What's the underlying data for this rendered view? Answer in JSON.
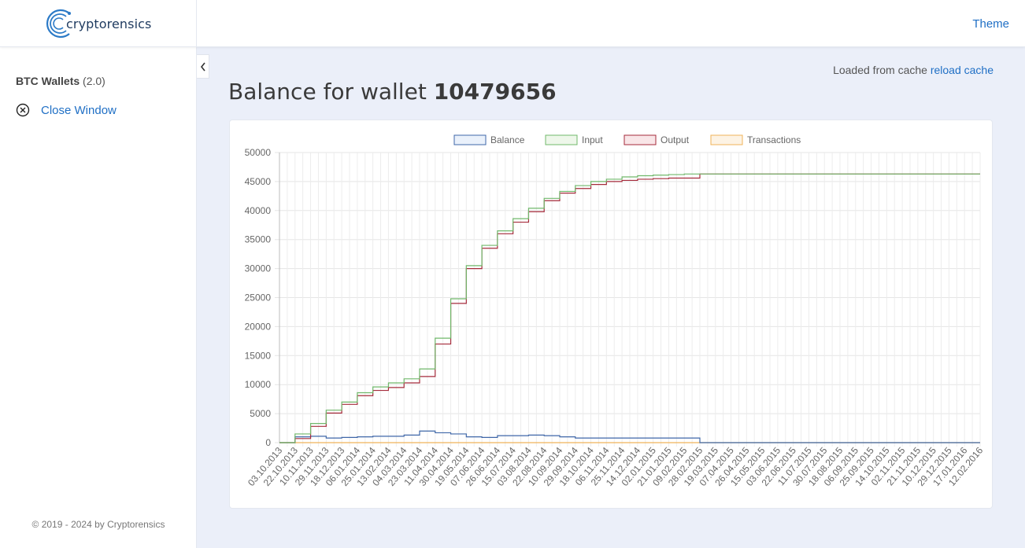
{
  "header": {
    "logo_text": "cryptorensics",
    "theme_label": "Theme"
  },
  "sidebar": {
    "section_title": "BTC Wallets",
    "section_version": "(2.0)",
    "close_label": "Close Window",
    "footer": "© 2019 - 2024 by Cryptorensics"
  },
  "main": {
    "cache_text": "Loaded from cache",
    "reload_label": "reload cache",
    "title_prefix": "Balance for wallet",
    "wallet_id": "10479656"
  },
  "colors": {
    "accent": "#1f6fc5",
    "balance": "#3f67a8",
    "input": "#70b86b",
    "output": "#a52b3b",
    "transactions": "#f0b35a"
  },
  "icons": {
    "close": "circle-x-icon",
    "collapse": "chevron-left-icon"
  },
  "chart_data": {
    "type": "line",
    "ylim": [
      0,
      50000
    ],
    "yticks": [
      0,
      5000,
      10000,
      15000,
      20000,
      25000,
      30000,
      35000,
      40000,
      45000,
      50000
    ],
    "legend_position": "top",
    "grid": true,
    "categories": [
      "03.10.2013",
      "22.10.2013",
      "10.11.2013",
      "29.11.2013",
      "18.12.2013",
      "06.01.2014",
      "25.01.2014",
      "13.02.2014",
      "04.03.2014",
      "23.03.2014",
      "11.04.2014",
      "30.04.2014",
      "19.05.2014",
      "07.06.2014",
      "26.06.2014",
      "15.07.2014",
      "03.08.2014",
      "22.08.2014",
      "10.09.2014",
      "29.09.2014",
      "18.10.2014",
      "06.11.2014",
      "25.11.2014",
      "14.12.2014",
      "02.01.2015",
      "21.01.2015",
      "09.02.2015",
      "28.02.2015",
      "19.03.2015",
      "07.04.2015",
      "26.04.2015",
      "15.05.2015",
      "03.06.2015",
      "22.06.2015",
      "11.07.2015",
      "30.07.2015",
      "18.08.2015",
      "06.09.2015",
      "25.09.2015",
      "14.10.2015",
      "02.11.2015",
      "21.11.2015",
      "10.12.2015",
      "29.12.2015",
      "17.01.2016",
      "12.02.2016"
    ],
    "series": [
      {
        "name": "Balance",
        "values": [
          0,
          1000,
          1100,
          800,
          900,
          1000,
          1100,
          1100,
          1300,
          2000,
          1700,
          1500,
          1000,
          900,
          1200,
          1200,
          1300,
          1200,
          1000,
          800,
          800,
          800,
          800,
          800,
          800,
          800,
          800,
          0,
          0,
          0,
          0,
          0,
          0,
          0,
          0,
          0,
          0,
          0,
          0,
          0,
          0,
          0,
          0,
          0,
          0,
          0
        ]
      },
      {
        "name": "Input",
        "values": [
          0,
          1500,
          3300,
          5600,
          7000,
          8600,
          9600,
          10300,
          11000,
          12700,
          18000,
          24800,
          30500,
          34000,
          36500,
          38600,
          40400,
          42100,
          43300,
          44300,
          45000,
          45400,
          45800,
          46000,
          46100,
          46200,
          46300,
          46300,
          46300,
          46300,
          46300,
          46300,
          46300,
          46300,
          46300,
          46300,
          46300,
          46300,
          46300,
          46300,
          46300,
          46300,
          46300,
          46300,
          46300,
          46300
        ]
      },
      {
        "name": "Output",
        "values": [
          0,
          700,
          2800,
          5100,
          6600,
          8100,
          9000,
          9500,
          10300,
          11400,
          17000,
          24000,
          30000,
          33500,
          36000,
          38000,
          39800,
          41700,
          43000,
          43800,
          44500,
          45000,
          45200,
          45400,
          45500,
          45600,
          45600,
          46300,
          46300,
          46300,
          46300,
          46300,
          46300,
          46300,
          46300,
          46300,
          46300,
          46300,
          46300,
          46300,
          46300,
          46300,
          46300,
          46300,
          46300,
          46300
        ]
      },
      {
        "name": "Transactions",
        "values": [
          0,
          0,
          0,
          0,
          0,
          0,
          0,
          0,
          0,
          0,
          0,
          0,
          0,
          0,
          0,
          0,
          0,
          0,
          0,
          0,
          0,
          0,
          0,
          0,
          0,
          0,
          0,
          0,
          0,
          0,
          0,
          0,
          0,
          0,
          0,
          0,
          0,
          0,
          0,
          0,
          0,
          0,
          0,
          0,
          0,
          0
        ]
      }
    ]
  }
}
